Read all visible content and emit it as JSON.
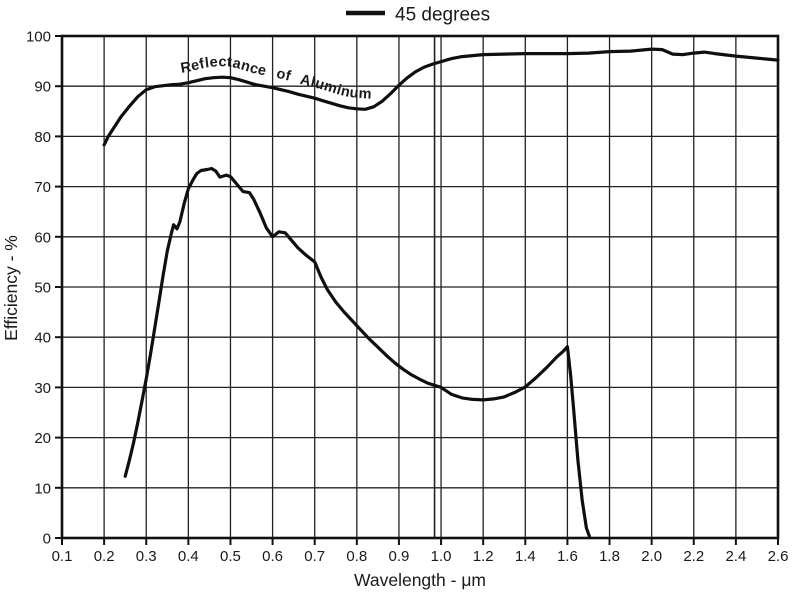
{
  "legend": {
    "label": "45 degrees"
  },
  "chart_data": {
    "type": "line",
    "title": "",
    "xlabel": "Wavelength - μm",
    "ylabel": "Efficiency - %",
    "grid": "on",
    "legend_position": "top-center",
    "x_axis_note": "segmented linear scale: 0.1 steps from 0.1 to 1.0, 0.2 steps from 1.0 to 2.6; scale change marked by double vertical line at 1.0",
    "x_ticks": [
      0.1,
      0.2,
      0.3,
      0.4,
      0.5,
      0.6,
      0.7,
      0.8,
      0.9,
      1.0,
      1.2,
      1.4,
      1.6,
      1.8,
      2.0,
      2.2,
      2.4,
      2.6
    ],
    "x_tick_labels": [
      "0.1",
      "0.2",
      "0.3",
      "0.4",
      "0.5",
      "0.6",
      "0.7",
      "0.8",
      "0.9",
      "1.0",
      "1.2",
      "1.4",
      "1.6",
      "1.8",
      "2.0",
      "2.2",
      "2.4",
      "2.6"
    ],
    "y_ticks": [
      0,
      10,
      20,
      30,
      40,
      50,
      60,
      70,
      80,
      90,
      100
    ],
    "ylim": [
      0,
      100
    ],
    "annotations": {
      "curve_label": "Reflectance of Aluminum",
      "scale_break_x": 1.0
    },
    "series": [
      {
        "name": "Reflectance of Aluminum",
        "points": [
          [
            0.2,
            78.3
          ],
          [
            0.21,
            80.0
          ],
          [
            0.22,
            81.3
          ],
          [
            0.24,
            83.9
          ],
          [
            0.26,
            86.0
          ],
          [
            0.28,
            87.9
          ],
          [
            0.3,
            89.3
          ],
          [
            0.32,
            89.9
          ],
          [
            0.34,
            90.1
          ],
          [
            0.36,
            90.3
          ],
          [
            0.38,
            90.4
          ],
          [
            0.4,
            90.7
          ],
          [
            0.42,
            91.1
          ],
          [
            0.44,
            91.5
          ],
          [
            0.46,
            91.7
          ],
          [
            0.48,
            91.8
          ],
          [
            0.5,
            91.7
          ],
          [
            0.52,
            91.3
          ],
          [
            0.54,
            90.8
          ],
          [
            0.56,
            90.3
          ],
          [
            0.58,
            90.0
          ],
          [
            0.6,
            89.7
          ],
          [
            0.62,
            89.3
          ],
          [
            0.64,
            88.9
          ],
          [
            0.66,
            88.4
          ],
          [
            0.68,
            88.0
          ],
          [
            0.7,
            87.6
          ],
          [
            0.72,
            87.1
          ],
          [
            0.74,
            86.6
          ],
          [
            0.76,
            86.1
          ],
          [
            0.78,
            85.7
          ],
          [
            0.8,
            85.5
          ],
          [
            0.82,
            85.4
          ],
          [
            0.84,
            85.9
          ],
          [
            0.86,
            87.0
          ],
          [
            0.88,
            88.5
          ],
          [
            0.9,
            90.2
          ],
          [
            0.92,
            91.7
          ],
          [
            0.94,
            92.9
          ],
          [
            0.96,
            93.8
          ],
          [
            0.98,
            94.4
          ],
          [
            1.0,
            94.9
          ],
          [
            1.05,
            95.5
          ],
          [
            1.1,
            95.9
          ],
          [
            1.15,
            96.1
          ],
          [
            1.2,
            96.3
          ],
          [
            1.3,
            96.4
          ],
          [
            1.4,
            96.5
          ],
          [
            1.5,
            96.5
          ],
          [
            1.6,
            96.5
          ],
          [
            1.7,
            96.6
          ],
          [
            1.8,
            96.9
          ],
          [
            1.9,
            97.0
          ],
          [
            1.95,
            97.2
          ],
          [
            2.0,
            97.4
          ],
          [
            2.05,
            97.3
          ],
          [
            2.1,
            96.4
          ],
          [
            2.15,
            96.3
          ],
          [
            2.2,
            96.6
          ],
          [
            2.25,
            96.8
          ],
          [
            2.3,
            96.5
          ],
          [
            2.4,
            96.0
          ],
          [
            2.5,
            95.6
          ],
          [
            2.6,
            95.2
          ]
        ]
      },
      {
        "name": "45 degrees",
        "points": [
          [
            0.25,
            12.3
          ],
          [
            0.26,
            15.5
          ],
          [
            0.27,
            19.0
          ],
          [
            0.28,
            23.0
          ],
          [
            0.29,
            27.3
          ],
          [
            0.3,
            31.7
          ],
          [
            0.31,
            36.5
          ],
          [
            0.32,
            41.8
          ],
          [
            0.33,
            47.0
          ],
          [
            0.34,
            52.3
          ],
          [
            0.35,
            57.2
          ],
          [
            0.36,
            60.8
          ],
          [
            0.365,
            62.4
          ],
          [
            0.373,
            61.6
          ],
          [
            0.38,
            63.0
          ],
          [
            0.39,
            66.6
          ],
          [
            0.4,
            69.6
          ],
          [
            0.41,
            71.2
          ],
          [
            0.42,
            72.6
          ],
          [
            0.43,
            73.2
          ],
          [
            0.445,
            73.4
          ],
          [
            0.455,
            73.6
          ],
          [
            0.465,
            73.1
          ],
          [
            0.475,
            71.9
          ],
          [
            0.49,
            72.3
          ],
          [
            0.5,
            72.0
          ],
          [
            0.51,
            71.0
          ],
          [
            0.52,
            70.0
          ],
          [
            0.53,
            69.0
          ],
          [
            0.545,
            68.8
          ],
          [
            0.555,
            67.5
          ],
          [
            0.57,
            64.8
          ],
          [
            0.585,
            61.8
          ],
          [
            0.6,
            60.0
          ],
          [
            0.615,
            61.0
          ],
          [
            0.63,
            60.8
          ],
          [
            0.645,
            59.3
          ],
          [
            0.66,
            57.8
          ],
          [
            0.68,
            56.3
          ],
          [
            0.7,
            55.0
          ],
          [
            0.715,
            52.0
          ],
          [
            0.73,
            49.5
          ],
          [
            0.75,
            47.0
          ],
          [
            0.77,
            45.0
          ],
          [
            0.79,
            43.2
          ],
          [
            0.81,
            41.4
          ],
          [
            0.83,
            39.6
          ],
          [
            0.85,
            38.0
          ],
          [
            0.87,
            36.4
          ],
          [
            0.89,
            34.9
          ],
          [
            0.91,
            33.6
          ],
          [
            0.93,
            32.5
          ],
          [
            0.95,
            31.6
          ],
          [
            0.97,
            30.8
          ],
          [
            1.0,
            30.0
          ],
          [
            1.05,
            28.6
          ],
          [
            1.1,
            27.9
          ],
          [
            1.15,
            27.6
          ],
          [
            1.2,
            27.5
          ],
          [
            1.25,
            27.7
          ],
          [
            1.3,
            28.1
          ],
          [
            1.35,
            29.0
          ],
          [
            1.4,
            30.1
          ],
          [
            1.45,
            31.9
          ],
          [
            1.5,
            33.9
          ],
          [
            1.55,
            36.1
          ],
          [
            1.58,
            37.2
          ],
          [
            1.6,
            38.1
          ],
          [
            1.615,
            32.5
          ],
          [
            1.63,
            25.5
          ],
          [
            1.65,
            15.5
          ],
          [
            1.67,
            7.5
          ],
          [
            1.69,
            2.0
          ],
          [
            1.705,
            0.3
          ]
        ]
      }
    ]
  }
}
